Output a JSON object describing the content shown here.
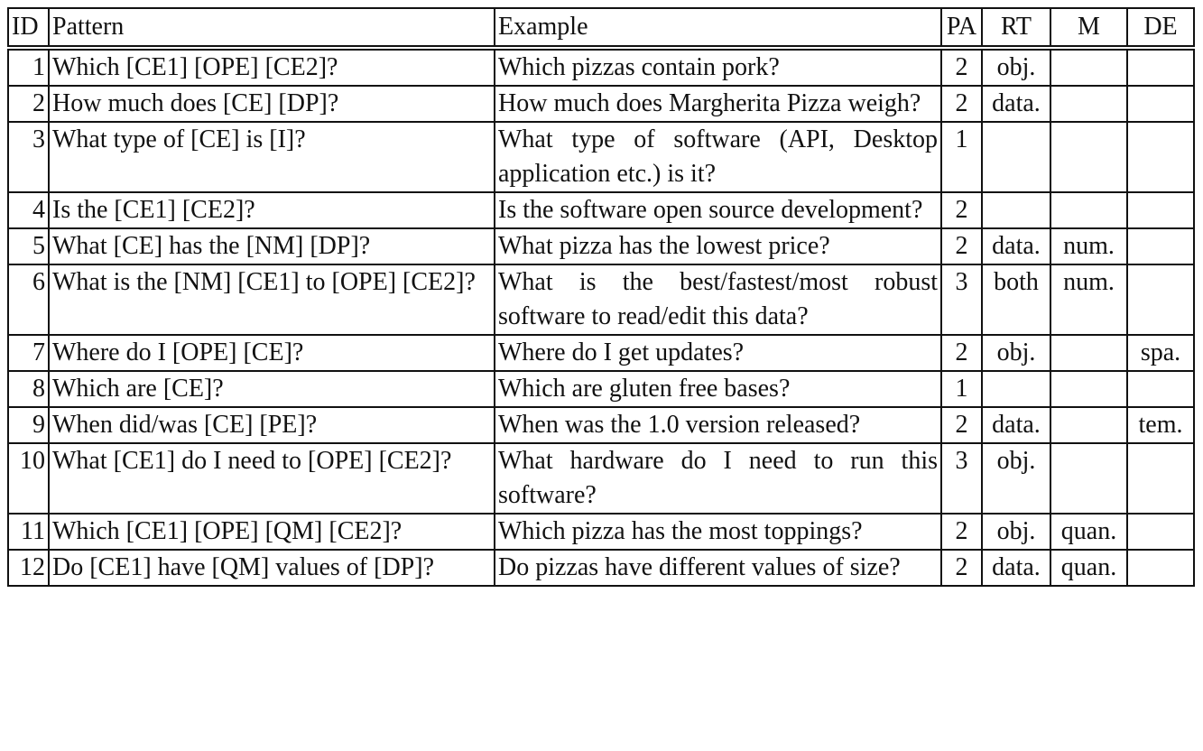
{
  "headers": {
    "id": "ID",
    "pattern": "Pattern",
    "example": "Example",
    "pa": "PA",
    "rt": "RT",
    "m": "M",
    "de": "DE"
  },
  "rows": [
    {
      "id": "1",
      "pattern": "Which [CE1] [OPE] [CE2]?",
      "example": "Which pizzas contain pork?",
      "pa": "2",
      "rt": "obj.",
      "m": "",
      "de": ""
    },
    {
      "id": "2",
      "pattern": "How much does [CE] [DP]?",
      "example": "How much does Margherita Pizza weigh?",
      "pa": "2",
      "rt": "data.",
      "m": "",
      "de": ""
    },
    {
      "id": "3",
      "pattern": "What type of [CE] is [I]?",
      "example": "What type of software (API, Desk­top application etc.) is it?",
      "pa": "1",
      "rt": "",
      "m": "",
      "de": ""
    },
    {
      "id": "4",
      "pattern": "Is the [CE1] [CE2]?",
      "example": "Is the software open source devel­opment?",
      "pa": "2",
      "rt": "",
      "m": "",
      "de": ""
    },
    {
      "id": "5",
      "pattern": "What [CE] has the [NM] [DP]?",
      "example": "What pizza has the lowest price?",
      "pa": "2",
      "rt": "data.",
      "m": "num.",
      "de": ""
    },
    {
      "id": "6",
      "pattern": "What is the [NM] [CE1] to [OPE] [CE2]?",
      "example": "What is the best/fastest/most robust software to read/edit this data?",
      "pa": "3",
      "rt": "both",
      "m": "num.",
      "de": ""
    },
    {
      "id": "7",
      "pattern": "Where do I [OPE] [CE]?",
      "example": "Where do I get updates?",
      "pa": "2",
      "rt": "obj.",
      "m": "",
      "de": "spa."
    },
    {
      "id": "8",
      "pattern": "Which are [CE]?",
      "example": "Which are gluten free bases?",
      "pa": "1",
      "rt": "",
      "m": "",
      "de": ""
    },
    {
      "id": "9",
      "pattern": "When did/was [CE] [PE]?",
      "example": "When was the 1.0 version released?",
      "pa": "2",
      "rt": "data.",
      "m": "",
      "de": "tem."
    },
    {
      "id": "10",
      "pattern": "What [CE1] do I need to [OPE] [CE2]?",
      "example": "What hardware do I need to run this software?",
      "pa": "3",
      "rt": "obj.",
      "m": "",
      "de": ""
    },
    {
      "id": "11",
      "pattern": "Which [CE1] [OPE] [QM] [CE2]?",
      "example": "Which pizza has the most toppings?",
      "pa": "2",
      "rt": "obj.",
      "m": "quan.",
      "de": ""
    },
    {
      "id": "12",
      "pattern": "Do [CE1] have [QM] values of [DP]?",
      "example": "Do pizzas have different values of size?",
      "pa": "2",
      "rt": "data.",
      "m": "quan.",
      "de": ""
    }
  ]
}
